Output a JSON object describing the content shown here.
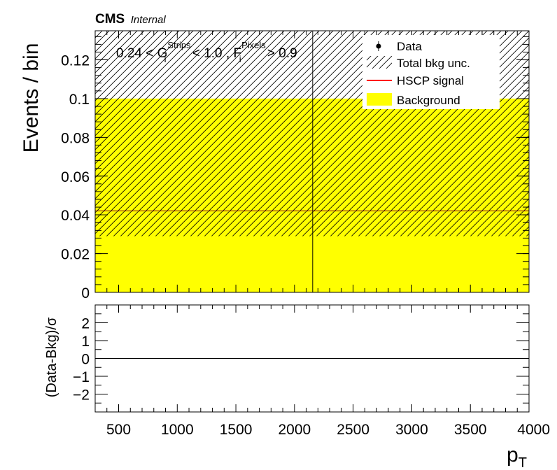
{
  "header": {
    "experiment": "CMS",
    "status": "Internal"
  },
  "selection": {
    "prefix": "0.24 < G",
    "g_sup": "Strips",
    "g_sub": "i",
    "middle": " < 1.0 , F",
    "f_sup": "Pixels",
    "f_sub": "i",
    "suffix": " > 0.9"
  },
  "legend": [
    {
      "label": "Data",
      "style": "marker",
      "color": "#000000"
    },
    {
      "label": "Total bkg unc.",
      "style": "hatch",
      "color": "#000000"
    },
    {
      "label": "HSCP signal",
      "style": "line",
      "color": "#ff0000"
    },
    {
      "label": "Background",
      "style": "fill",
      "color": "#ffff00"
    }
  ],
  "colors": {
    "background_fill": "#ffff00",
    "signal_line": "#ff0000",
    "uncertainty_hatch": "#000000",
    "frame": "#000000"
  },
  "chart_data": [
    {
      "type": "bar",
      "name": "main",
      "xlabel": "",
      "ylabel": "Events / bin",
      "xlim": [
        300,
        4000
      ],
      "ylim": [
        0,
        0.135
      ],
      "yticks": [
        0,
        0.02,
        0.04,
        0.06,
        0.08,
        0.1,
        0.12
      ],
      "ytick_labels": [
        "0",
        "0.02",
        "0.04",
        "0.06",
        "0.08",
        "0.1",
        "0.12"
      ],
      "bin_edges": [
        300,
        4000
      ],
      "background": [
        0.1
      ],
      "background_unc_band": [
        [
          0.029,
          0.135
        ]
      ],
      "hscp_signal": [
        0.042
      ],
      "data": [],
      "vertical_line_x": 2155,
      "grid": false,
      "legend_position": "top-right"
    },
    {
      "type": "scatter",
      "name": "ratio",
      "xlabel": "p_T",
      "ylabel": "(Data-Bkg)/σ",
      "xlim": [
        300,
        4000
      ],
      "ylim": [
        -3,
        3
      ],
      "xticks": [
        500,
        1000,
        1500,
        2000,
        2500,
        3000,
        3500,
        4000
      ],
      "xtick_labels": [
        "500",
        "1000",
        "1500",
        "2000",
        "2500",
        "3000",
        "3500",
        "4000"
      ],
      "yticks": [
        -2,
        -1,
        0,
        1,
        2
      ],
      "ytick_labels": [
        "−2",
        "−1",
        "0",
        "1",
        "2"
      ],
      "reference_line_y": 0,
      "points": [],
      "grid": false
    }
  ]
}
